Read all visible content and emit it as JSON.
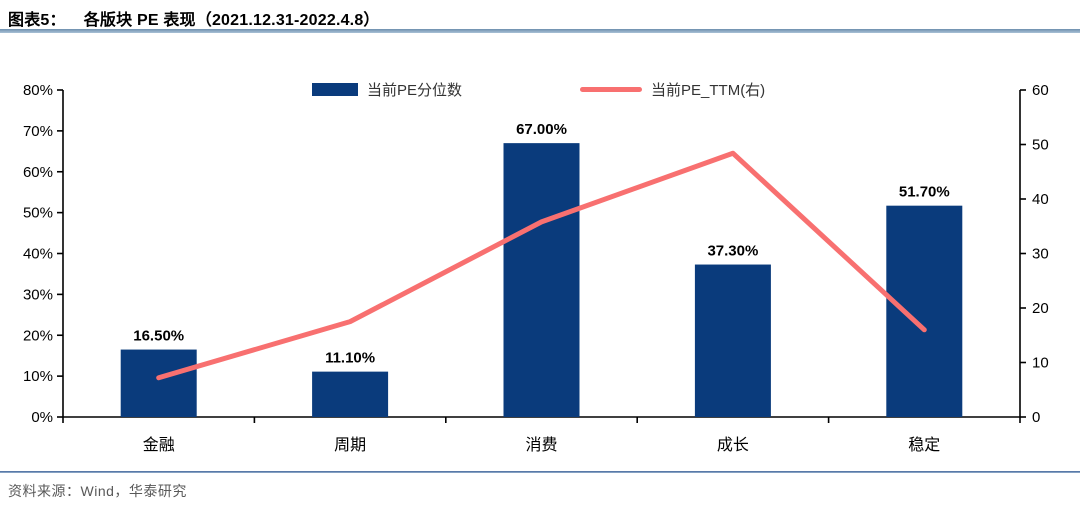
{
  "header": {
    "figure_label": "图表5：",
    "title": "各版块 PE 表现（2021.12.31-2022.4.8）"
  },
  "footer": {
    "source": "资料来源：Wind，华泰研究"
  },
  "colors": {
    "bar": "#0a3b7c",
    "line": "#f87070",
    "axis": "#000000",
    "divider": "#6e8fae"
  },
  "chart_data": {
    "type": "bar",
    "subtype": "bar-line-combo",
    "categories": [
      "金融",
      "周期",
      "消费",
      "成长",
      "稳定"
    ],
    "series": [
      {
        "name": "当前PE分位数",
        "type": "bar",
        "axis": "left",
        "unit": "%",
        "values": [
          16.5,
          11.1,
          67.0,
          37.3,
          51.7
        ],
        "labels": [
          "16.50%",
          "11.10%",
          "67.00%",
          "37.30%",
          "51.70%"
        ],
        "color": "#0a3b7c"
      },
      {
        "name": "当前PE_TTM(右)",
        "type": "line",
        "axis": "right",
        "values": [
          7.2,
          17.5,
          35.8,
          48.4,
          16.0
        ],
        "color": "#f87070"
      }
    ],
    "left_axis": {
      "min": 0,
      "max": 80,
      "step": 10,
      "tick_labels": [
        "0%",
        "10%",
        "20%",
        "30%",
        "40%",
        "50%",
        "60%",
        "70%",
        "80%"
      ]
    },
    "right_axis": {
      "min": 0,
      "max": 60,
      "step": 10,
      "tick_labels": [
        "0",
        "10",
        "20",
        "30",
        "40",
        "50",
        "60"
      ]
    },
    "legend_position": "top-center",
    "grid": false
  }
}
